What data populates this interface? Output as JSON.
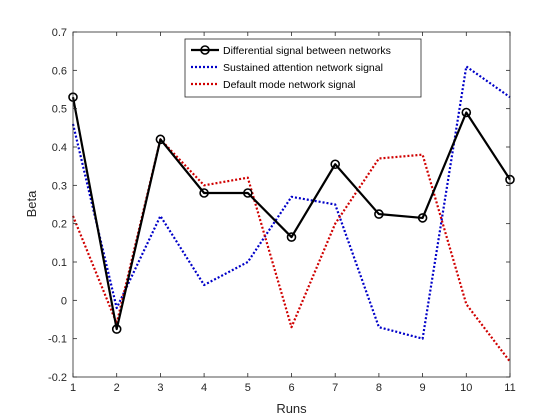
{
  "chart_data": {
    "type": "line",
    "xlabel": "Runs",
    "ylabel": "Beta",
    "x": [
      1,
      2,
      3,
      4,
      5,
      6,
      7,
      8,
      9,
      10,
      11
    ],
    "xlim": [
      1,
      11
    ],
    "ylim": [
      -0.2,
      0.7
    ],
    "xticks": [
      1,
      2,
      3,
      4,
      5,
      6,
      7,
      8,
      9,
      10,
      11
    ],
    "yticks": [
      -0.2,
      -0.1,
      0,
      0.1,
      0.2,
      0.3,
      0.4,
      0.5,
      0.6,
      0.7
    ],
    "ytick_labels": [
      "-0.2",
      "-0.1",
      "0",
      "0.1",
      "0.2",
      "0.3",
      "0.4",
      "0.5",
      "0.6",
      "0.7"
    ],
    "grid": false,
    "legend_position": "top-right",
    "series": [
      {
        "name": "Differential signal between networks",
        "color": "#000000",
        "style": "solid",
        "marker": "circle",
        "values": [
          0.53,
          -0.075,
          0.42,
          0.28,
          0.28,
          0.165,
          0.355,
          0.225,
          0.215,
          0.49,
          0.315
        ]
      },
      {
        "name": "Sustained attention network signal",
        "color": "#0000c8",
        "style": "dotted",
        "marker": "none",
        "values": [
          0.46,
          -0.02,
          0.22,
          0.04,
          0.1,
          0.27,
          0.25,
          -0.07,
          -0.1,
          0.61,
          0.53
        ]
      },
      {
        "name": "Default mode network signal",
        "color": "#d00000",
        "style": "dotted",
        "marker": "none",
        "values": [
          0.22,
          -0.06,
          0.42,
          0.3,
          0.32,
          -0.07,
          0.2,
          0.37,
          0.38,
          -0.01,
          -0.16
        ]
      }
    ]
  }
}
